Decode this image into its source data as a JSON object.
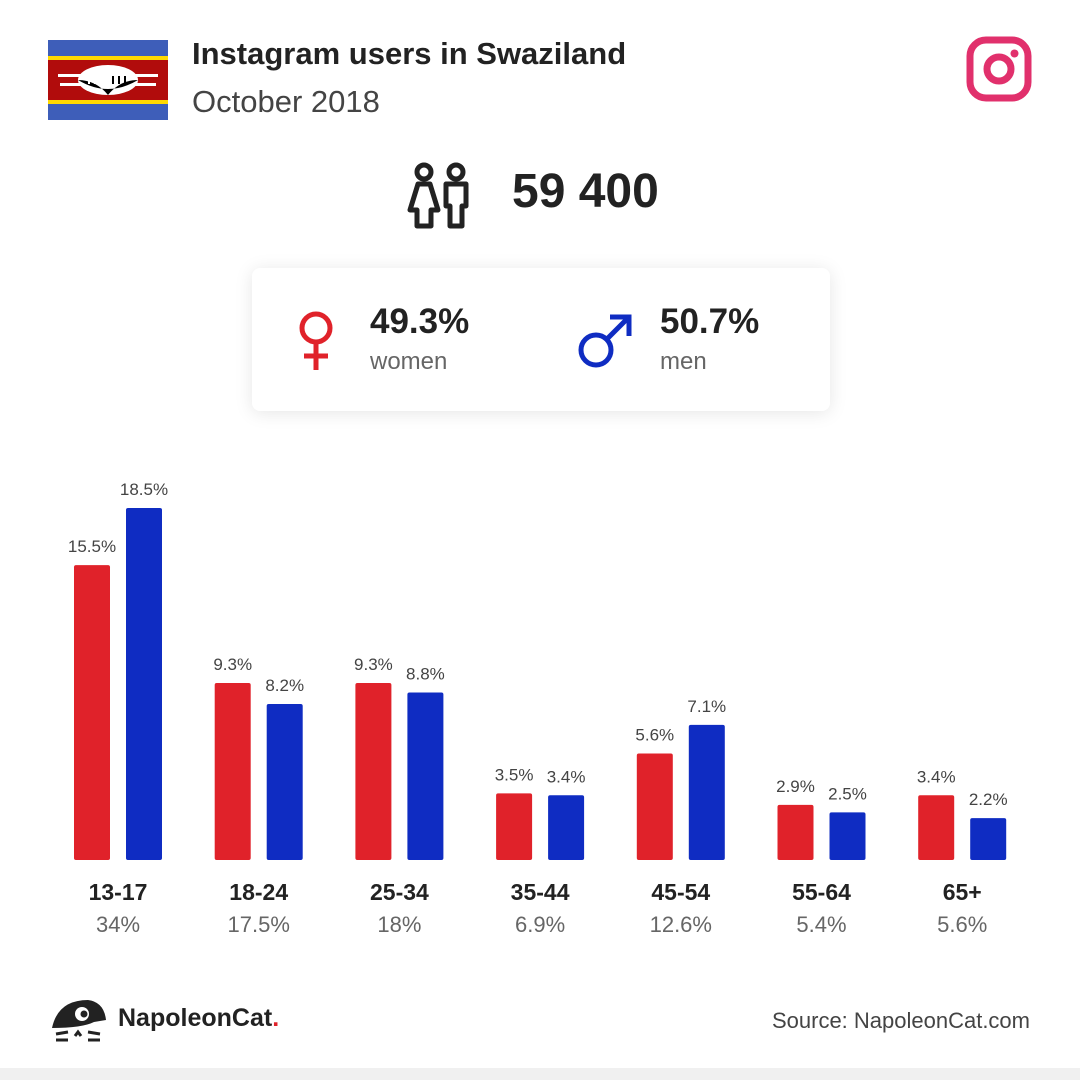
{
  "header": {
    "title": "Instagram users in Swaziland",
    "subtitle": "October 2018"
  },
  "icons": {
    "flag": "swaziland-flag-icon",
    "platform": "instagram-icon",
    "users": "people-icon",
    "female": "female-symbol-icon",
    "male": "male-symbol-icon",
    "brand": "napoleoncat-logo-icon"
  },
  "colors": {
    "women": "#e0222a",
    "men": "#0f2cc2",
    "instagram": "#e1306c"
  },
  "total_users": "59 400",
  "gender": {
    "women": {
      "pct": "49.3%",
      "label": "women"
    },
    "men": {
      "pct": "50.7%",
      "label": "men"
    }
  },
  "chart_data": {
    "type": "bar",
    "categories": [
      "13-17",
      "18-24",
      "25-34",
      "35-44",
      "45-54",
      "55-64",
      "65+"
    ],
    "category_totals": [
      "34%",
      "17.5%",
      "18%",
      "6.9%",
      "12.6%",
      "5.4%",
      "5.6%"
    ],
    "series": [
      {
        "values": [
          15.5,
          9.3,
          9.3,
          3.5,
          5.6,
          2.9,
          3.4
        ],
        "labels": [
          "15.5%",
          "9.3%",
          "9.3%",
          "3.5%",
          "5.6%",
          "2.9%",
          "3.4%"
        ],
        "color": "#e0222a"
      },
      {
        "values": [
          18.5,
          8.2,
          8.8,
          3.4,
          7.1,
          2.5,
          2.2
        ],
        "labels": [
          "18.5%",
          "8.2%",
          "8.8%",
          "3.4%",
          "7.1%",
          "2.5%",
          "2.2%"
        ],
        "color": "#0f2cc2"
      }
    ],
    "ylim": [
      0,
      18.5
    ],
    "grid": false,
    "legend": "none"
  },
  "footer": {
    "brand_name": "NapoleonCat",
    "brand_dot": ".",
    "source": "Source: NapoleonCat.com"
  }
}
